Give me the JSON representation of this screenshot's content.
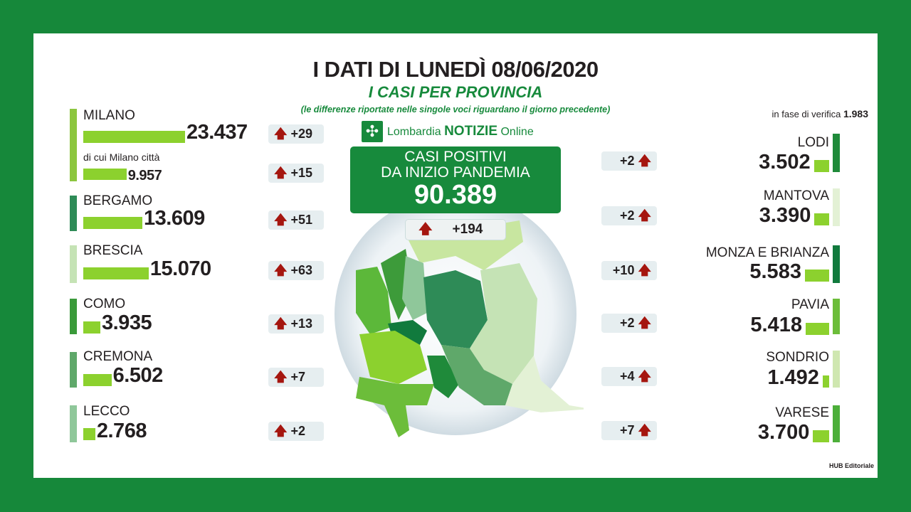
{
  "header": {
    "title": "I DATI DI LUNEDÌ 08/06/2020",
    "subtitle": "I CASI PER PROVINCIA",
    "note": "(le differenze riportate nelle singole voci riguardano il giorno precedente)"
  },
  "logo": {
    "brand": "Lombardia",
    "notizie": "NOTIZIE",
    "online": "Online"
  },
  "total": {
    "line1": "CASI POSITIVI",
    "line2": "DA INIZIO PANDEMIA",
    "value": "90.389",
    "delta": "+194"
  },
  "verification": {
    "label": "in fase di verifica",
    "value": "1.983"
  },
  "footer": "HUB Editoriale",
  "colors": {
    "frame": "#16883a",
    "bar": "#8cd12e",
    "arrow": "#a5160f"
  },
  "chart_data": {
    "type": "bar",
    "orientation": "horizontal",
    "categories": [
      "MILANO",
      "di cui Milano città",
      "BERGAMO",
      "BRESCIA",
      "COMO",
      "CREMONA",
      "LECCO",
      "LODI",
      "MANTOVA",
      "MONZA E BRIANZA",
      "PAVIA",
      "SONDRIO",
      "VARESE"
    ],
    "values": [
      23437,
      9957,
      13609,
      15070,
      3935,
      6502,
      2768,
      3502,
      3390,
      5583,
      5418,
      1492,
      3700
    ],
    "labels": [
      "23.437",
      "9.957",
      "13.609",
      "15.070",
      "3.935",
      "6.502",
      "2.768",
      "3.502",
      "3.390",
      "5.583",
      "5.418",
      "1.492",
      "3.700"
    ],
    "deltas": [
      "+29",
      "+15",
      "+51",
      "+63",
      "+13",
      "+7",
      "+2",
      "+2",
      "+2",
      "+10",
      "+2",
      "+4",
      "+7"
    ]
  }
}
